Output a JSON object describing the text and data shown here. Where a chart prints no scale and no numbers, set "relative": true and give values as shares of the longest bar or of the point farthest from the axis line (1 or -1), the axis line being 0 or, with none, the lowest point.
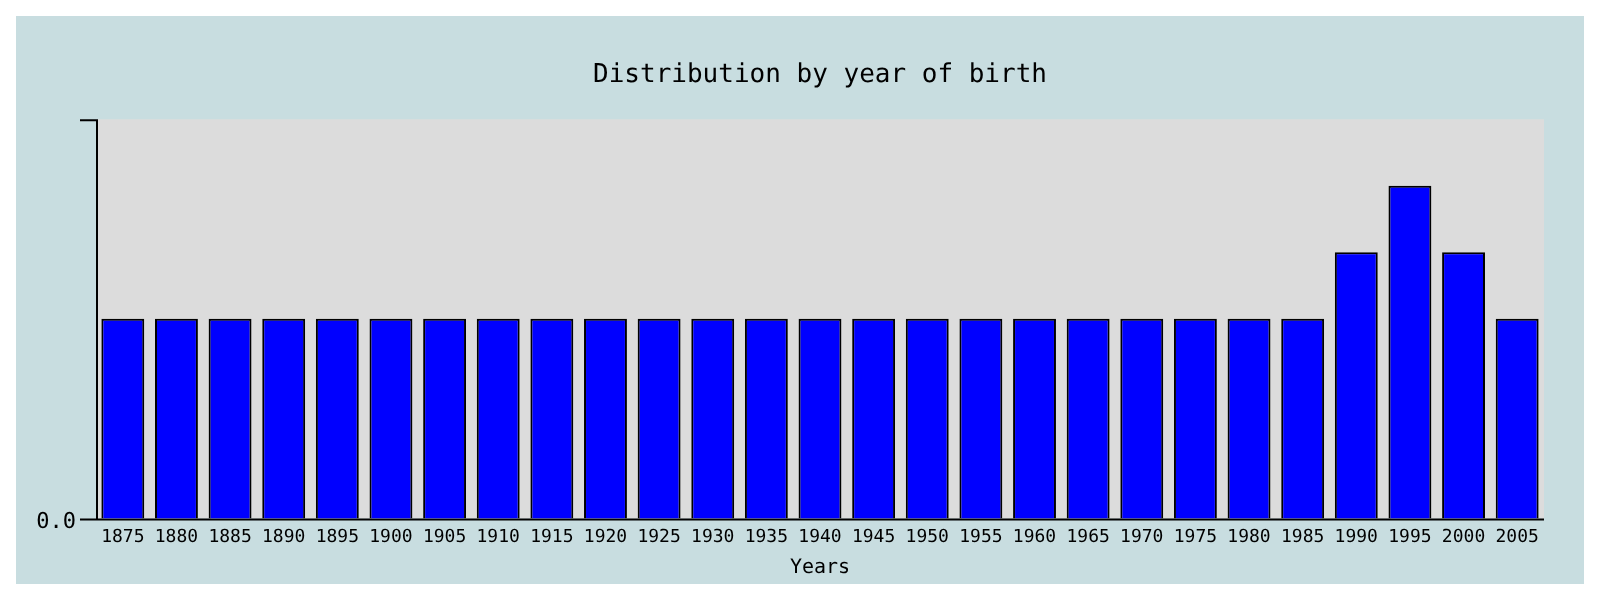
{
  "chart_data": {
    "type": "bar",
    "title": "Distribution by year of birth",
    "xlabel": "Years",
    "categories": [
      "1875",
      "1880",
      "1885",
      "1890",
      "1895",
      "1900",
      "1905",
      "1910",
      "1915",
      "1920",
      "1925",
      "1930",
      "1935",
      "1940",
      "1945",
      "1950",
      "1955",
      "1960",
      "1965",
      "1970",
      "1975",
      "1980",
      "1985",
      "1990",
      "1995",
      "2000",
      "2005"
    ],
    "values": [
      0.6,
      0.6,
      0.6,
      0.6,
      0.6,
      0.6,
      0.6,
      0.6,
      0.6,
      0.6,
      0.6,
      0.6,
      0.6,
      0.6,
      0.6,
      0.6,
      0.6,
      0.6,
      0.6,
      0.6,
      0.6,
      0.6,
      0.6,
      0.8,
      1,
      0.8,
      0.6
    ],
    "color": "#0000ff",
    "relative": true,
    "grid": false,
    "legend": false,
    "annotations": [
      "0.0"
    ]
  }
}
